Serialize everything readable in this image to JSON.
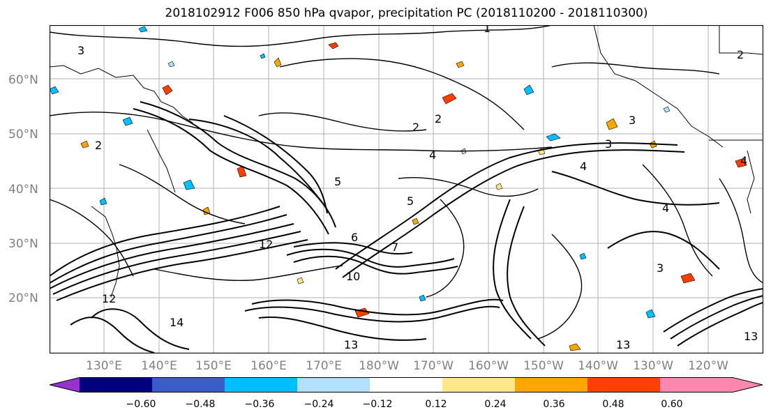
{
  "title": "2018102912 F006 850 hPa qvapor, precipitation PC (2018110200 - 2018110300)",
  "lat_labels": [
    "60°N",
    "50°N",
    "40°N",
    "30°N",
    "20°N"
  ],
  "lon_labels": [
    "130°E",
    "140°E",
    "150°E",
    "160°E",
    "170°E",
    "180°W",
    "170°W",
    "160°W",
    "150°W",
    "140°W",
    "130°W",
    "120°W"
  ],
  "colorbar": {
    "ticks": [
      "−0.60",
      "−0.48",
      "−0.36",
      "−0.24",
      "−0.12",
      "0.12",
      "0.24",
      "0.36",
      "0.48",
      "0.60"
    ],
    "colors": [
      "#9932cc",
      "#000080",
      "#3a5cc8",
      "#00bfff",
      "#b0e0ff",
      "#ffffff",
      "#ffe88a",
      "#ffa500",
      "#ff4000",
      "#b22222",
      "#ff88b0"
    ]
  },
  "contour_labels": [
    "1",
    "2",
    "2",
    "2",
    "2",
    "3",
    "3",
    "3",
    "3",
    "4",
    "4",
    "4",
    "4",
    "5",
    "5",
    "6",
    "7",
    "10",
    "12",
    "12",
    "13",
    "13",
    "13",
    "14"
  ],
  "colors": {
    "contour": "#000000",
    "coast": "#000000",
    "grid": "#a0a0a0",
    "label": "#808080"
  }
}
